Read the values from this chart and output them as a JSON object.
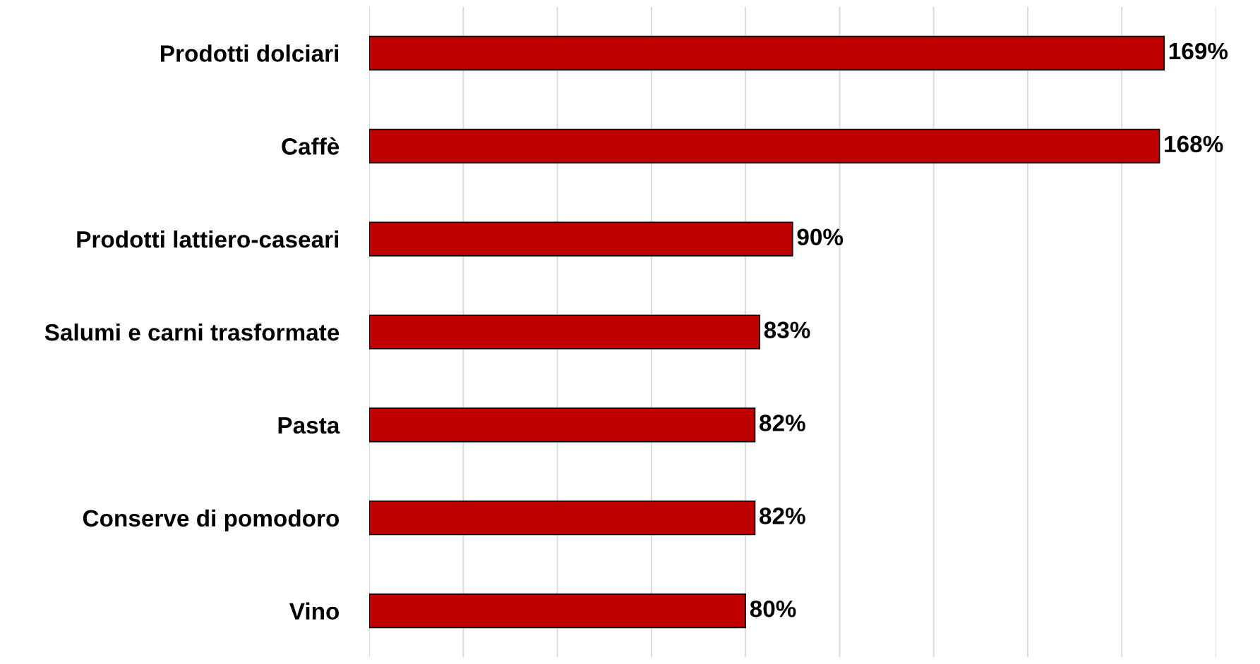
{
  "chart_data": {
    "type": "bar",
    "orientation": "horizontal",
    "categories": [
      "Prodotti dolciari",
      "Caffè",
      "Prodotti lattiero-caseari",
      "Salumi e carni trasformate",
      "Pasta",
      "Conserve di pomodoro",
      "Vino"
    ],
    "values": [
      169,
      168,
      90,
      83,
      82,
      82,
      80
    ],
    "value_labels": [
      "169%",
      "168%",
      "90%",
      "83%",
      "82%",
      "82%",
      "80%"
    ],
    "color": "#c00000",
    "xlim": [
      0,
      180
    ],
    "xticks": [
      {
        "value": 0,
        "label": null
      },
      {
        "value": 20,
        "label": null
      },
      {
        "value": 40,
        "label": null
      },
      {
        "value": 60,
        "label": null
      },
      {
        "value": 80,
        "label": null
      },
      {
        "value": 100,
        "label": null
      },
      {
        "value": 120,
        "label": null
      },
      {
        "value": 140,
        "label": null
      },
      {
        "value": 160,
        "label": null
      },
      {
        "value": 180,
        "label": null
      }
    ],
    "grid": "x"
  }
}
